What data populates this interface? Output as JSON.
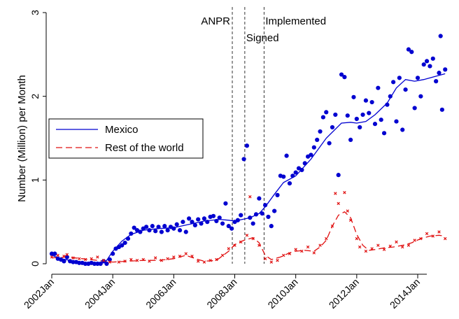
{
  "chart_data": {
    "type": "scatter",
    "title": "",
    "xlabel": "",
    "ylabel": "Number (Million) per Month",
    "xlim": [
      2002.0,
      2014.9
    ],
    "ylim": [
      0,
      3
    ],
    "yticks": [
      0,
      1,
      2,
      3
    ],
    "yticklabels": [
      "0",
      "1",
      "2",
      "3"
    ],
    "xticks": [
      2002.0,
      2004.0,
      2006.0,
      2008.0,
      2010.0,
      2012.0,
      2014.0
    ],
    "xticklabels": [
      "2002Jan",
      "2004Jan",
      "2006Jan",
      "2008Jan",
      "2010Jan",
      "2012Jan",
      "2014Jan"
    ],
    "events": [
      {
        "x": 2007.92,
        "label": "ANPR",
        "label_side": "left",
        "label_row": 1
      },
      {
        "x": 2008.33,
        "label": "Signed",
        "label_side": "right",
        "label_row": 2
      },
      {
        "x": 2008.96,
        "label": "Implemented",
        "label_side": "right",
        "label_row": 1
      }
    ],
    "legend": {
      "position": "middle-left",
      "entries": [
        "Mexico",
        "Rest of the world"
      ]
    },
    "series": [
      {
        "name": "Mexico",
        "color": "#0000d0",
        "marker": "circle",
        "trend_style": "solid",
        "trend": [
          [
            2002.0,
            0.1
          ],
          [
            2002.3,
            0.06
          ],
          [
            2002.6,
            0.04
          ],
          [
            2003.0,
            0.01
          ],
          [
            2003.4,
            0.0
          ],
          [
            2003.6,
            0.0
          ],
          [
            2003.8,
            0.04
          ],
          [
            2004.0,
            0.15
          ],
          [
            2004.3,
            0.27
          ],
          [
            2004.6,
            0.35
          ],
          [
            2005.0,
            0.4
          ],
          [
            2005.5,
            0.42
          ],
          [
            2006.0,
            0.43
          ],
          [
            2006.5,
            0.47
          ],
          [
            2007.0,
            0.51
          ],
          [
            2007.5,
            0.53
          ],
          [
            2007.8,
            0.52
          ],
          [
            2008.0,
            0.51
          ],
          [
            2008.5,
            0.55
          ],
          [
            2008.8,
            0.6
          ],
          [
            2009.0,
            0.68
          ],
          [
            2009.3,
            0.83
          ],
          [
            2009.6,
            0.97
          ],
          [
            2010.0,
            1.05
          ],
          [
            2010.5,
            1.25
          ],
          [
            2011.0,
            1.5
          ],
          [
            2011.5,
            1.68
          ],
          [
            2011.8,
            1.69
          ],
          [
            2012.0,
            1.68
          ],
          [
            2012.3,
            1.7
          ],
          [
            2012.6,
            1.78
          ],
          [
            2013.0,
            1.92
          ],
          [
            2013.3,
            2.1
          ],
          [
            2013.6,
            2.2
          ],
          [
            2013.9,
            2.18
          ],
          [
            2014.2,
            2.2
          ],
          [
            2014.5,
            2.23
          ],
          [
            2014.9,
            2.27
          ]
        ],
        "points": [
          [
            2002.0,
            0.12
          ],
          [
            2002.1,
            0.12
          ],
          [
            2002.2,
            0.06
          ],
          [
            2002.3,
            0.05
          ],
          [
            2002.4,
            0.03
          ],
          [
            2002.5,
            0.08
          ],
          [
            2002.6,
            0.03
          ],
          [
            2002.7,
            0.02
          ],
          [
            2002.8,
            0.02
          ],
          [
            2002.9,
            0.01
          ],
          [
            2003.0,
            0.01
          ],
          [
            2003.1,
            0.0
          ],
          [
            2003.2,
            0.0
          ],
          [
            2003.3,
            0.01
          ],
          [
            2003.4,
            0.0
          ],
          [
            2003.5,
            0.0
          ],
          [
            2003.6,
            0.0
          ],
          [
            2003.7,
            0.03
          ],
          [
            2003.8,
            0.0
          ],
          [
            2003.9,
            0.05
          ],
          [
            2004.0,
            0.12
          ],
          [
            2004.1,
            0.18
          ],
          [
            2004.2,
            0.2
          ],
          [
            2004.3,
            0.22
          ],
          [
            2004.4,
            0.25
          ],
          [
            2004.5,
            0.3
          ],
          [
            2004.6,
            0.36
          ],
          [
            2004.7,
            0.43
          ],
          [
            2004.8,
            0.4
          ],
          [
            2004.9,
            0.38
          ],
          [
            2005.0,
            0.42
          ],
          [
            2005.1,
            0.44
          ],
          [
            2005.2,
            0.4
          ],
          [
            2005.3,
            0.45
          ],
          [
            2005.4,
            0.39
          ],
          [
            2005.5,
            0.44
          ],
          [
            2005.6,
            0.38
          ],
          [
            2005.7,
            0.45
          ],
          [
            2005.8,
            0.4
          ],
          [
            2005.9,
            0.44
          ],
          [
            2006.0,
            0.42
          ],
          [
            2006.1,
            0.47
          ],
          [
            2006.2,
            0.4
          ],
          [
            2006.3,
            0.5
          ],
          [
            2006.4,
            0.38
          ],
          [
            2006.5,
            0.54
          ],
          [
            2006.6,
            0.5
          ],
          [
            2006.7,
            0.46
          ],
          [
            2006.8,
            0.53
          ],
          [
            2006.9,
            0.48
          ],
          [
            2007.0,
            0.54
          ],
          [
            2007.1,
            0.5
          ],
          [
            2007.2,
            0.56
          ],
          [
            2007.3,
            0.57
          ],
          [
            2007.4,
            0.51
          ],
          [
            2007.5,
            0.55
          ],
          [
            2007.6,
            0.48
          ],
          [
            2007.7,
            0.72
          ],
          [
            2007.8,
            0.45
          ],
          [
            2007.9,
            0.42
          ],
          [
            2008.0,
            0.5
          ],
          [
            2008.1,
            0.52
          ],
          [
            2008.2,
            0.58
          ],
          [
            2008.3,
            1.25
          ],
          [
            2008.4,
            1.41
          ],
          [
            2008.5,
            0.55
          ],
          [
            2008.6,
            0.48
          ],
          [
            2008.7,
            0.59
          ],
          [
            2008.8,
            0.78
          ],
          [
            2008.9,
            0.6
          ],
          [
            2009.0,
            0.7
          ],
          [
            2009.1,
            0.56
          ],
          [
            2009.2,
            0.45
          ],
          [
            2009.3,
            0.63
          ],
          [
            2009.4,
            0.82
          ],
          [
            2009.5,
            1.05
          ],
          [
            2009.6,
            1.04
          ],
          [
            2009.7,
            1.29
          ],
          [
            2009.8,
            0.96
          ],
          [
            2009.9,
            1.05
          ],
          [
            2010.0,
            1.09
          ],
          [
            2010.1,
            1.14
          ],
          [
            2010.2,
            1.12
          ],
          [
            2010.3,
            1.2
          ],
          [
            2010.4,
            1.28
          ],
          [
            2010.5,
            1.3
          ],
          [
            2010.6,
            1.39
          ],
          [
            2010.7,
            1.48
          ],
          [
            2010.8,
            1.58
          ],
          [
            2010.9,
            1.75
          ],
          [
            2011.0,
            1.81
          ],
          [
            2011.1,
            1.44
          ],
          [
            2011.2,
            1.63
          ],
          [
            2011.3,
            1.78
          ],
          [
            2011.4,
            1.06
          ],
          [
            2011.5,
            2.26
          ],
          [
            2011.6,
            2.23
          ],
          [
            2011.7,
            1.77
          ],
          [
            2011.8,
            1.48
          ],
          [
            2011.9,
            1.99
          ],
          [
            2012.0,
            1.73
          ],
          [
            2012.1,
            1.63
          ],
          [
            2012.2,
            1.78
          ],
          [
            2012.3,
            1.95
          ],
          [
            2012.4,
            1.8
          ],
          [
            2012.5,
            1.93
          ],
          [
            2012.6,
            1.67
          ],
          [
            2012.7,
            2.1
          ],
          [
            2012.8,
            1.72
          ],
          [
            2012.9,
            1.56
          ],
          [
            2013.0,
            1.9
          ],
          [
            2013.1,
            2.0
          ],
          [
            2013.2,
            2.17
          ],
          [
            2013.3,
            1.7
          ],
          [
            2013.4,
            2.22
          ],
          [
            2013.5,
            1.6
          ],
          [
            2013.6,
            2.08
          ],
          [
            2013.7,
            2.56
          ],
          [
            2013.8,
            2.53
          ],
          [
            2013.9,
            1.86
          ],
          [
            2014.0,
            2.22
          ],
          [
            2014.1,
            2.0
          ],
          [
            2014.2,
            2.38
          ],
          [
            2014.3,
            2.42
          ],
          [
            2014.4,
            2.36
          ],
          [
            2014.5,
            2.45
          ],
          [
            2014.6,
            2.18
          ],
          [
            2014.7,
            2.28
          ],
          [
            2014.8,
            1.84
          ],
          [
            2014.9,
            2.32
          ],
          [
            2014.75,
            2.72
          ]
        ]
      },
      {
        "name": "Rest of the world",
        "color": "#e01010",
        "marker": "x",
        "trend_style": "dashed",
        "trend": [
          [
            2002.0,
            0.07
          ],
          [
            2002.5,
            0.08
          ],
          [
            2003.0,
            0.06
          ],
          [
            2003.5,
            0.04
          ],
          [
            2004.0,
            0.02
          ],
          [
            2004.5,
            0.03
          ],
          [
            2005.0,
            0.04
          ],
          [
            2005.5,
            0.04
          ],
          [
            2006.0,
            0.06
          ],
          [
            2006.4,
            0.1
          ],
          [
            2006.8,
            0.05
          ],
          [
            2007.0,
            0.03
          ],
          [
            2007.4,
            0.04
          ],
          [
            2007.8,
            0.15
          ],
          [
            2008.0,
            0.23
          ],
          [
            2008.3,
            0.28
          ],
          [
            2008.6,
            0.31
          ],
          [
            2008.8,
            0.25
          ],
          [
            2009.0,
            0.1
          ],
          [
            2009.2,
            0.05
          ],
          [
            2009.5,
            0.08
          ],
          [
            2009.8,
            0.13
          ],
          [
            2010.0,
            0.15
          ],
          [
            2010.3,
            0.16
          ],
          [
            2010.6,
            0.15
          ],
          [
            2010.8,
            0.2
          ],
          [
            2011.0,
            0.28
          ],
          [
            2011.2,
            0.45
          ],
          [
            2011.4,
            0.58
          ],
          [
            2011.6,
            0.62
          ],
          [
            2011.8,
            0.55
          ],
          [
            2012.0,
            0.35
          ],
          [
            2012.2,
            0.22
          ],
          [
            2012.4,
            0.16
          ],
          [
            2012.6,
            0.17
          ],
          [
            2012.9,
            0.19
          ],
          [
            2013.2,
            0.2
          ],
          [
            2013.5,
            0.22
          ],
          [
            2013.8,
            0.25
          ],
          [
            2014.1,
            0.3
          ],
          [
            2014.4,
            0.33
          ],
          [
            2014.7,
            0.34
          ],
          [
            2014.9,
            0.33
          ]
        ],
        "points": [
          [
            2002.0,
            0.08
          ],
          [
            2002.2,
            0.1
          ],
          [
            2002.4,
            0.09
          ],
          [
            2002.5,
            0.11
          ],
          [
            2002.7,
            0.07
          ],
          [
            2002.9,
            0.06
          ],
          [
            2003.1,
            0.05
          ],
          [
            2003.3,
            0.06
          ],
          [
            2003.5,
            0.08
          ],
          [
            2003.7,
            0.04
          ],
          [
            2003.9,
            0.02
          ],
          [
            2004.2,
            0.02
          ],
          [
            2004.4,
            0.03
          ],
          [
            2004.6,
            0.05
          ],
          [
            2004.8,
            0.04
          ],
          [
            2005.0,
            0.05
          ],
          [
            2005.2,
            0.03
          ],
          [
            2005.4,
            0.07
          ],
          [
            2005.6,
            0.04
          ],
          [
            2005.8,
            0.06
          ],
          [
            2006.0,
            0.08
          ],
          [
            2006.2,
            0.09
          ],
          [
            2006.4,
            0.12
          ],
          [
            2006.6,
            0.09
          ],
          [
            2006.8,
            0.03
          ],
          [
            2007.0,
            0.02
          ],
          [
            2007.2,
            0.04
          ],
          [
            2007.4,
            0.05
          ],
          [
            2007.6,
            0.1
          ],
          [
            2007.8,
            0.18
          ],
          [
            2008.0,
            0.22
          ],
          [
            2008.2,
            0.26
          ],
          [
            2008.4,
            0.34
          ],
          [
            2008.5,
            0.8
          ],
          [
            2008.6,
            0.3
          ],
          [
            2008.8,
            0.22
          ],
          [
            2009.0,
            0.06
          ],
          [
            2009.2,
            0.02
          ],
          [
            2009.4,
            0.04
          ],
          [
            2009.6,
            0.1
          ],
          [
            2009.8,
            0.12
          ],
          [
            2010.0,
            0.17
          ],
          [
            2010.2,
            0.15
          ],
          [
            2010.4,
            0.2
          ],
          [
            2010.6,
            0.13
          ],
          [
            2010.8,
            0.22
          ],
          [
            2011.0,
            0.3
          ],
          [
            2011.2,
            0.45
          ],
          [
            2011.3,
            0.84
          ],
          [
            2011.4,
            0.72
          ],
          [
            2011.6,
            0.85
          ],
          [
            2011.7,
            0.63
          ],
          [
            2011.8,
            0.52
          ],
          [
            2012.0,
            0.3
          ],
          [
            2012.1,
            0.2
          ],
          [
            2012.3,
            0.15
          ],
          [
            2012.5,
            0.18
          ],
          [
            2012.7,
            0.22
          ],
          [
            2012.9,
            0.17
          ],
          [
            2013.1,
            0.21
          ],
          [
            2013.3,
            0.26
          ],
          [
            2013.5,
            0.2
          ],
          [
            2013.7,
            0.22
          ],
          [
            2013.9,
            0.28
          ],
          [
            2014.1,
            0.3
          ],
          [
            2014.3,
            0.36
          ],
          [
            2014.5,
            0.33
          ],
          [
            2014.7,
            0.38
          ],
          [
            2014.9,
            0.3
          ]
        ]
      }
    ]
  }
}
